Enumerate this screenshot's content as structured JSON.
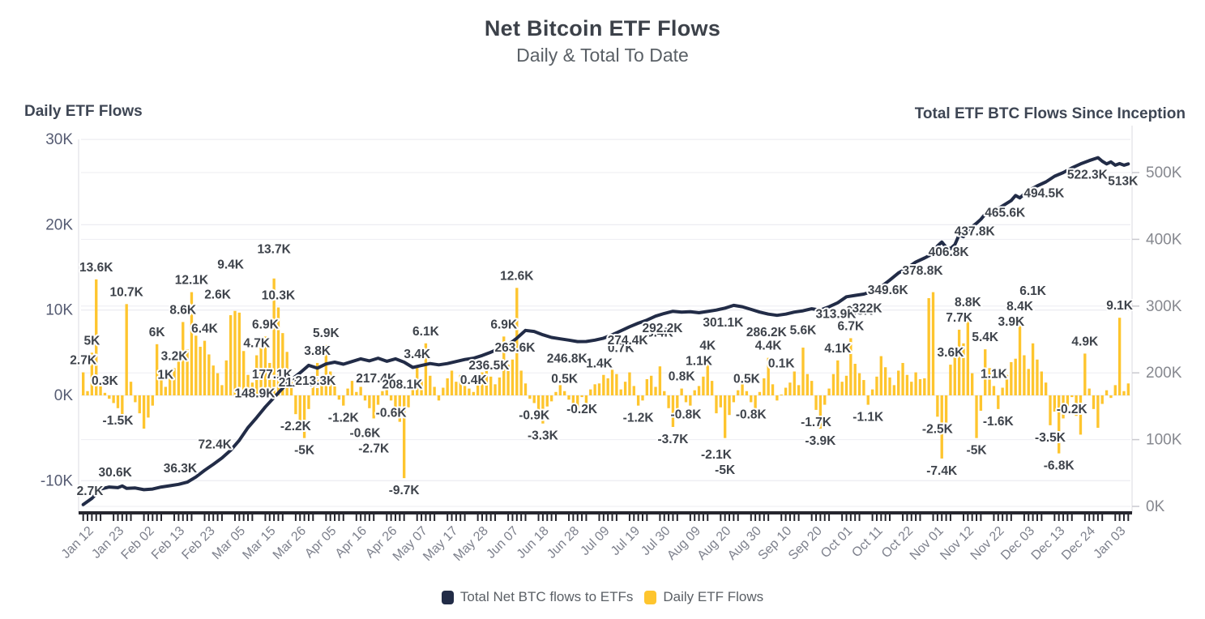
{
  "title": "Net Bitcoin ETF Flows",
  "subtitle": "Daily & Total To Date",
  "left_axis": {
    "title": "Daily ETF Flows",
    "ticks": [
      "30K",
      "20K",
      "10K",
      "0K",
      "-10K"
    ],
    "tick_values": [
      30,
      20,
      10,
      0,
      -10
    ]
  },
  "right_axis": {
    "title": "Total ETF BTC Flows Since Inception",
    "ticks": [
      "500K",
      "400K",
      "300K",
      "200K",
      "100K",
      "0K"
    ],
    "tick_values": [
      500,
      400,
      300,
      200,
      100,
      0
    ]
  },
  "legend": {
    "line_label": "Total Net BTC flows to ETFs",
    "bar_label": "Daily ETF Flows"
  },
  "colors": {
    "bar": "#FEC52E",
    "line": "#222C47",
    "grid": "#EDEDF2",
    "border": "#E3E3E8",
    "axis": "#26262E",
    "label": "#3E434B",
    "tick_left": "#555B72",
    "tick_right": "#86888F",
    "date": "#7D808C"
  },
  "chart_data": {
    "type": "combo-bar-line",
    "title": "Net Bitcoin ETF Flows",
    "subtitle": "Daily & Total To Date",
    "unit": "K BTC",
    "grid": true,
    "n_days": 242,
    "x_tick_labels": [
      "Jan 12",
      "Jan 23",
      "Feb 02",
      "Feb 13",
      "Feb 23",
      "Mar 05",
      "Mar 15",
      "Mar 26",
      "Apr 05",
      "Apr 16",
      "Apr 26",
      "May 07",
      "May 17",
      "May 28",
      "Jun 07",
      "Jun 18",
      "Jun 28",
      "Jul 09",
      "Jul 19",
      "Jul 30",
      "Aug 09",
      "Aug 20",
      "Aug 30",
      "Sep 10",
      "Sep 20",
      "Oct 01",
      "Oct 11",
      "Oct 22",
      "Nov 01",
      "Nov 12",
      "Nov 22",
      "Dec 03",
      "Dec 13",
      "Dec 24",
      "Jan 03"
    ],
    "x_tick_day_indices": [
      1,
      8,
      15,
      22,
      29,
      36,
      43,
      50,
      57,
      64,
      71,
      78,
      85,
      92,
      99,
      106,
      113,
      120,
      127,
      134,
      141,
      148,
      155,
      162,
      169,
      176,
      183,
      190,
      197,
      204,
      211,
      218,
      225,
      232,
      239
    ],
    "left_ylim_K": [
      -13.8,
      30
    ],
    "right_ylim_K": [
      0,
      550
    ],
    "series": [
      {
        "name": "Daily ETF Flows",
        "type": "bar",
        "axis": "left"
      },
      {
        "name": "Total Net BTC flows to ETFs",
        "type": "line",
        "axis": "right"
      }
    ],
    "daily_bars": {
      "name": "Daily ETF Flows",
      "values": [
        2.7,
        0.5,
        5,
        13.6,
        1.1,
        0.3,
        -0.4,
        -0.9,
        -1.5,
        -2.8,
        10.7,
        1.6,
        -0.8,
        -2.1,
        -3.9,
        -2.6,
        -1.2,
        6,
        1.9,
        1,
        2.3,
        3.2,
        4.9,
        8.6,
        5.4,
        12.1,
        7,
        5.7,
        6.4,
        4.8,
        3.5,
        2.6,
        1.2,
        4.1,
        9.4,
        9.9,
        9.7,
        5.2,
        2.4,
        1.5,
        4.7,
        5.6,
        6.9,
        3.8,
        13.7,
        10.3,
        7.3,
        5.1,
        2.2,
        -2.2,
        -3.4,
        -5,
        -1.6,
        1.3,
        3.8,
        2.1,
        5.9,
        2.8,
        1.1,
        -0.5,
        -1.2,
        0.8,
        1.7,
        0.4,
        1,
        -0.6,
        -1.5,
        -2.7,
        -1.1,
        0.5,
        1.2,
        -0.6,
        -1.8,
        -3.1,
        -9.7,
        -1.4,
        0.7,
        3.4,
        1.9,
        6.1,
        2.3,
        1,
        -0.6,
        0.9,
        2,
        2.9,
        1.6,
        2.4,
        1.1,
        0.8,
        0.4,
        1.9,
        2.7,
        3.3,
        2.2,
        1.3,
        2.1,
        6.9,
        3.6,
        4.2,
        12.6,
        2.9,
        1.4,
        -0.4,
        -0.9,
        -1.9,
        -3.3,
        -1.3,
        -0.7,
        0.4,
        1.2,
        0.5,
        -0.5,
        -1.1,
        -1.7,
        -0.2,
        -0.9,
        0.7,
        1.3,
        1.4,
        2.4,
        2,
        3,
        2.5,
        0.7,
        1.6,
        2.7,
        1.1,
        -1.2,
        -0.6,
        1.9,
        2.3,
        1,
        3.4,
        0.5,
        -1.5,
        -3.7,
        -2.1,
        0.8,
        -0.8,
        -1.2,
        0.6,
        1.1,
        2.2,
        4,
        1.7,
        -2.1,
        -1.4,
        -5,
        -2.3,
        -0.8,
        0.6,
        1.4,
        0.5,
        -0.8,
        -1.5,
        0.4,
        2,
        4.4,
        1.3,
        -0.6,
        0.1,
        0.9,
        1.5,
        2.8,
        1.2,
        5.6,
        2.5,
        1.7,
        -1.7,
        -3.9,
        -1.1,
        0.8,
        2.5,
        4.1,
        1.6,
        2.3,
        6.7,
        3.7,
        2.6,
        1.8,
        -1.1,
        0.7,
        2.2,
        4.6,
        3.3,
        2.1,
        1.2,
        2.9,
        3.8,
        2.4,
        1.6,
        2.7,
        1.9,
        2,
        11.4,
        12.1,
        -2.5,
        -7.4,
        -3.6,
        3.6,
        5.2,
        7.7,
        6.1,
        8.8,
        2.6,
        -5,
        -1.8,
        5.4,
        3.2,
        1.1,
        -1.6,
        0.9,
        2.4,
        3.9,
        4.3,
        8.4,
        4.7,
        3.1,
        6.1,
        4.2,
        2.8,
        1.5,
        -3.5,
        -1.9,
        -6.8,
        -2.7,
        -1.3,
        -0.2,
        -2.4,
        -4.6,
        4.9,
        0.8,
        -1.6,
        -3.8,
        -1,
        0.6,
        -0.3,
        1.2,
        9.1,
        0.5,
        1.4
      ]
    },
    "bar_labels": [
      {
        "i": 0,
        "text": "2.7K"
      },
      {
        "i": 2,
        "text": "5K"
      },
      {
        "i": 3,
        "text": "13.6K"
      },
      {
        "i": 5,
        "text": "0.3K"
      },
      {
        "i": 8,
        "text": "-1.5K"
      },
      {
        "i": 10,
        "text": "10.7K"
      },
      {
        "i": 17,
        "text": "6K"
      },
      {
        "i": 19,
        "text": "1K"
      },
      {
        "i": 21,
        "text": "3.2K"
      },
      {
        "i": 23,
        "text": "8.6K"
      },
      {
        "i": 25,
        "text": "12.1K"
      },
      {
        "i": 28,
        "text": "6.4K"
      },
      {
        "i": 31,
        "text": "2.6K"
      },
      {
        "i": 34,
        "text": "9.4K"
      },
      {
        "i": 40,
        "text": "4.7K"
      },
      {
        "i": 42,
        "text": "6.9K"
      },
      {
        "i": 44,
        "text": "13.7K"
      },
      {
        "i": 45,
        "text": "10.3K"
      },
      {
        "i": 49,
        "text": "-2.2K"
      },
      {
        "i": 51,
        "text": "-5K"
      },
      {
        "i": 54,
        "text": "3.8K"
      },
      {
        "i": 56,
        "text": "5.9K"
      },
      {
        "i": 60,
        "text": "-1.2K"
      },
      {
        "i": 65,
        "text": "-0.6K"
      },
      {
        "i": 67,
        "text": "-2.7K"
      },
      {
        "i": 71,
        "text": "-0.6K"
      },
      {
        "i": 74,
        "text": "-9.7K"
      },
      {
        "i": 77,
        "text": "3.4K"
      },
      {
        "i": 79,
        "text": "6.1K"
      },
      {
        "i": 90,
        "text": "0.4K"
      },
      {
        "i": 97,
        "text": "6.9K"
      },
      {
        "i": 100,
        "text": "12.6K"
      },
      {
        "i": 104,
        "text": "-0.9K"
      },
      {
        "i": 106,
        "text": "-3.3K"
      },
      {
        "i": 111,
        "text": "0.5K"
      },
      {
        "i": 115,
        "text": "-0.2K"
      },
      {
        "i": 119,
        "text": "1.4K"
      },
      {
        "i": 124,
        "text": "0.7K"
      },
      {
        "i": 128,
        "text": "-1.2K"
      },
      {
        "i": 133,
        "text": "3.4K"
      },
      {
        "i": 136,
        "text": "-3.7K"
      },
      {
        "i": 138,
        "text": "0.8K"
      },
      {
        "i": 139,
        "text": "-0.8K"
      },
      {
        "i": 142,
        "text": "1.1K"
      },
      {
        "i": 144,
        "text": "4K"
      },
      {
        "i": 146,
        "text": "-2.1K"
      },
      {
        "i": 148,
        "text": "-5K"
      },
      {
        "i": 153,
        "text": "0.5K"
      },
      {
        "i": 154,
        "text": "-0.8K"
      },
      {
        "i": 158,
        "text": "4.4K"
      },
      {
        "i": 161,
        "text": "0.1K"
      },
      {
        "i": 166,
        "text": "5.6K"
      },
      {
        "i": 169,
        "text": "-1.7K"
      },
      {
        "i": 170,
        "text": "-3.9K"
      },
      {
        "i": 174,
        "text": "4.1K"
      },
      {
        "i": 177,
        "text": "6.7K"
      },
      {
        "i": 179,
        "text": "2.6K"
      },
      {
        "i": 181,
        "text": "-1.1K"
      },
      {
        "i": 197,
        "text": "-2.5K"
      },
      {
        "i": 198,
        "text": "-7.4K"
      },
      {
        "i": 200,
        "text": "3.6K"
      },
      {
        "i": 202,
        "text": "7.7K"
      },
      {
        "i": 204,
        "text": "8.8K"
      },
      {
        "i": 206,
        "text": "-5K"
      },
      {
        "i": 208,
        "text": "5.4K"
      },
      {
        "i": 210,
        "text": "1.1K"
      },
      {
        "i": 211,
        "text": "-1.6K"
      },
      {
        "i": 214,
        "text": "3.9K"
      },
      {
        "i": 216,
        "text": "8.4K"
      },
      {
        "i": 219,
        "text": "6.1K"
      },
      {
        "i": 223,
        "text": "-3.5K"
      },
      {
        "i": 225,
        "text": "-6.8K"
      },
      {
        "i": 228,
        "text": "-0.2K"
      },
      {
        "i": 231,
        "text": "4.9K"
      },
      {
        "i": 239,
        "text": "9.1K"
      }
    ],
    "cumulative_line": {
      "name": "Total Net BTC flows to ETFs",
      "points": [
        [
          0,
          2.7
        ],
        [
          2,
          12
        ],
        [
          4,
          26
        ],
        [
          6,
          29
        ],
        [
          8,
          28
        ],
        [
          9,
          30.6
        ],
        [
          10,
          27
        ],
        [
          12,
          27.5
        ],
        [
          14,
          25
        ],
        [
          16,
          26
        ],
        [
          18,
          29
        ],
        [
          20,
          31
        ],
        [
          22,
          33
        ],
        [
          24,
          36.3
        ],
        [
          26,
          44
        ],
        [
          28,
          54
        ],
        [
          30,
          63
        ],
        [
          32,
          72.4
        ],
        [
          34,
          84
        ],
        [
          36,
          99
        ],
        [
          38,
          118
        ],
        [
          40,
          133
        ],
        [
          42,
          148.9
        ],
        [
          44,
          163
        ],
        [
          46,
          177.1
        ],
        [
          48,
          190
        ],
        [
          50,
          200
        ],
        [
          52,
          211.3
        ],
        [
          54,
          207
        ],
        [
          56,
          213.3
        ],
        [
          58,
          216
        ],
        [
          60,
          213
        ],
        [
          62,
          217
        ],
        [
          64,
          221
        ],
        [
          66,
          218
        ],
        [
          68,
          222
        ],
        [
          70,
          217.4
        ],
        [
          72,
          221
        ],
        [
          74,
          216
        ],
        [
          76,
          208.1
        ],
        [
          78,
          211
        ],
        [
          80,
          214
        ],
        [
          82,
          212
        ],
        [
          84,
          214
        ],
        [
          86,
          217
        ],
        [
          88,
          220
        ],
        [
          90,
          222
        ],
        [
          92,
          226
        ],
        [
          94,
          231
        ],
        [
          96,
          236.5
        ],
        [
          98,
          242
        ],
        [
          100,
          252
        ],
        [
          102,
          263.6
        ],
        [
          104,
          262
        ],
        [
          106,
          257
        ],
        [
          108,
          253
        ],
        [
          110,
          251
        ],
        [
          112,
          249
        ],
        [
          114,
          246.8
        ],
        [
          116,
          247
        ],
        [
          118,
          249
        ],
        [
          120,
          252
        ],
        [
          122,
          257
        ],
        [
          124,
          263
        ],
        [
          126,
          269
        ],
        [
          128,
          274.4
        ],
        [
          130,
          279
        ],
        [
          132,
          285
        ],
        [
          134,
          289
        ],
        [
          136,
          292.2
        ],
        [
          138,
          291
        ],
        [
          140,
          291.5
        ],
        [
          142,
          290
        ],
        [
          144,
          292
        ],
        [
          146,
          294
        ],
        [
          148,
          297
        ],
        [
          150,
          301.1
        ],
        [
          152,
          299
        ],
        [
          154,
          295
        ],
        [
          156,
          291
        ],
        [
          158,
          288
        ],
        [
          160,
          286.2
        ],
        [
          162,
          288
        ],
        [
          164,
          291
        ],
        [
          166,
          293
        ],
        [
          168,
          296
        ],
        [
          170,
          294
        ],
        [
          172,
          299
        ],
        [
          174,
          305
        ],
        [
          176,
          313.9
        ],
        [
          178,
          316
        ],
        [
          180,
          318
        ],
        [
          182,
          322
        ],
        [
          184,
          329
        ],
        [
          186,
          339
        ],
        [
          188,
          349.6
        ],
        [
          190,
          357
        ],
        [
          192,
          366
        ],
        [
          194,
          372
        ],
        [
          196,
          378.8
        ],
        [
          197,
          390
        ],
        [
          198,
          396
        ],
        [
          199,
          388
        ],
        [
          200,
          386
        ],
        [
          201,
          392
        ],
        [
          202,
          406.8
        ],
        [
          203,
          404
        ],
        [
          204,
          412
        ],
        [
          205,
          419
        ],
        [
          206,
          424
        ],
        [
          207,
          430
        ],
        [
          208,
          437.8
        ],
        [
          210,
          442
        ],
        [
          212,
          450
        ],
        [
          214,
          458
        ],
        [
          215,
          465.6
        ],
        [
          216,
          462
        ],
        [
          217,
          468
        ],
        [
          218,
          473
        ],
        [
          220,
          480
        ],
        [
          222,
          486
        ],
        [
          224,
          494.5
        ],
        [
          226,
          500
        ],
        [
          228,
          507
        ],
        [
          230,
          513
        ],
        [
          232,
          518
        ],
        [
          234,
          522.3
        ],
        [
          235,
          517
        ],
        [
          236,
          513
        ],
        [
          237,
          516
        ],
        [
          238,
          511
        ],
        [
          239,
          513.5
        ],
        [
          240,
          511
        ],
        [
          241,
          513
        ]
      ]
    },
    "line_labels": [
      {
        "text": "2.7K",
        "i": 0,
        "side": "above",
        "anchor": "start"
      },
      {
        "text": "30.6K",
        "i": 9,
        "side": "above"
      },
      {
        "text": "36.3K",
        "i": 24,
        "side": "above"
      },
      {
        "text": "72.4K",
        "i": 32,
        "side": "above"
      },
      {
        "text": "148.9K",
        "i": 42,
        "side": "above"
      },
      {
        "text": "177.1K",
        "i": 46,
        "side": "above"
      },
      {
        "text": "211.3K",
        "i": 52,
        "side": "below"
      },
      {
        "text": "213.3K",
        "i": 56,
        "side": "below"
      },
      {
        "text": "217.4K",
        "i": 70,
        "side": "below"
      },
      {
        "text": "208.1K",
        "i": 76,
        "side": "below"
      },
      {
        "text": "236.5K",
        "i": 96,
        "side": "below"
      },
      {
        "text": "263.6K",
        "i": 102,
        "side": "below"
      },
      {
        "text": "246.8K",
        "i": 114,
        "side": "below"
      },
      {
        "text": "274.4K",
        "i": 128,
        "side": "below"
      },
      {
        "text": "292.2K",
        "i": 136,
        "side": "below"
      },
      {
        "text": "301.1K",
        "i": 150,
        "side": "below"
      },
      {
        "text": "286.2K",
        "i": 160,
        "side": "below"
      },
      {
        "text": "313.9K",
        "i": 176,
        "side": "below"
      },
      {
        "text": "322K",
        "i": 182,
        "side": "below"
      },
      {
        "text": "349.6K",
        "i": 188,
        "side": "below"
      },
      {
        "text": "378.8K",
        "i": 196,
        "side": "below"
      },
      {
        "text": "406.8K",
        "i": 202,
        "side": "below"
      },
      {
        "text": "437.8K",
        "i": 208,
        "side": "below"
      },
      {
        "text": "465.6K",
        "i": 215,
        "side": "below"
      },
      {
        "text": "494.5K",
        "i": 224,
        "side": "below"
      },
      {
        "text": "522.3K",
        "i": 234,
        "side": "below"
      },
      {
        "text": "513K",
        "i": 241,
        "side": "below"
      }
    ]
  }
}
